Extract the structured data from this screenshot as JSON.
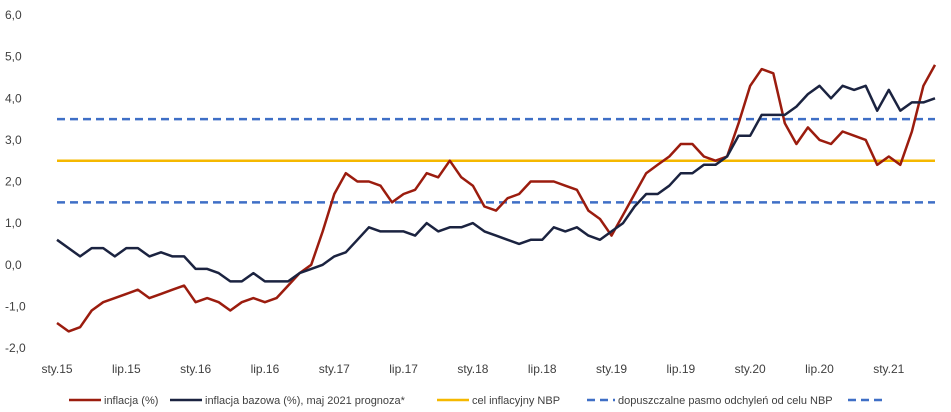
{
  "chart_data": {
    "type": "line",
    "title": "",
    "xlabel": "",
    "ylabel": "",
    "ylim": [
      -2.0,
      6.0
    ],
    "yticks": [
      "6,0",
      "5,0",
      "4,0",
      "3,0",
      "2,0",
      "1,0",
      "0,0",
      "-1,0",
      "-2,0"
    ],
    "x_tick_labels": [
      "sty.15",
      "lip.15",
      "sty.16",
      "lip.16",
      "sty.17",
      "lip.17",
      "sty.18",
      "lip.18",
      "sty.19",
      "lip.19",
      "sty.20",
      "lip.20",
      "sty.21"
    ],
    "x_start": "2015-01",
    "x_end": "2021-05",
    "series": [
      {
        "name": "inflacja (%)",
        "color": "#9b1c0e",
        "style": "solid",
        "values": [
          -1.4,
          -1.6,
          -1.5,
          -1.1,
          -0.9,
          -0.8,
          -0.7,
          -0.6,
          -0.8,
          -0.7,
          -0.6,
          -0.5,
          -0.9,
          -0.8,
          -0.9,
          -1.1,
          -0.9,
          -0.8,
          -0.9,
          -0.8,
          -0.5,
          -0.2,
          0.0,
          0.8,
          1.7,
          2.2,
          2.0,
          2.0,
          1.9,
          1.5,
          1.7,
          1.8,
          2.2,
          2.1,
          2.5,
          2.1,
          1.9,
          1.4,
          1.3,
          1.6,
          1.7,
          2.0,
          2.0,
          2.0,
          1.9,
          1.8,
          1.3,
          1.1,
          0.7,
          1.2,
          1.7,
          2.2,
          2.4,
          2.6,
          2.9,
          2.9,
          2.6,
          2.5,
          2.6,
          3.4,
          4.3,
          4.7,
          4.6,
          3.4,
          2.9,
          3.3,
          3.0,
          2.9,
          3.2,
          3.1,
          3.0,
          2.4,
          2.6,
          2.4,
          3.2,
          4.3,
          4.8
        ]
      },
      {
        "name": "inflacja bazowa (%), maj 2021 prognoza*",
        "color": "#1b2340",
        "style": "solid",
        "values": [
          0.6,
          0.4,
          0.2,
          0.4,
          0.4,
          0.2,
          0.4,
          0.4,
          0.2,
          0.3,
          0.2,
          0.2,
          -0.1,
          -0.1,
          -0.2,
          -0.4,
          -0.4,
          -0.2,
          -0.4,
          -0.4,
          -0.4,
          -0.2,
          -0.1,
          0.0,
          0.2,
          0.3,
          0.6,
          0.9,
          0.8,
          0.8,
          0.8,
          0.7,
          1.0,
          0.8,
          0.9,
          0.9,
          1.0,
          0.8,
          0.7,
          0.6,
          0.5,
          0.6,
          0.6,
          0.9,
          0.8,
          0.9,
          0.7,
          0.6,
          0.8,
          1.0,
          1.4,
          1.7,
          1.7,
          1.9,
          2.2,
          2.2,
          2.4,
          2.4,
          2.6,
          3.1,
          3.1,
          3.6,
          3.6,
          3.6,
          3.8,
          4.1,
          4.3,
          4.0,
          4.3,
          4.2,
          4.3,
          3.7,
          4.2,
          3.7,
          3.9,
          3.9,
          4.0
        ]
      },
      {
        "name": "cel inflacyjny NBP",
        "color": "#f5b800",
        "style": "solid",
        "constant": 2.5
      },
      {
        "name": "dopuszczalne pasmo odchyleń od celu NBP",
        "color": "#3f6fc6",
        "style": "dashed",
        "constants": [
          3.5,
          1.5
        ]
      }
    ],
    "legend_position": "bottom",
    "grid": false
  }
}
